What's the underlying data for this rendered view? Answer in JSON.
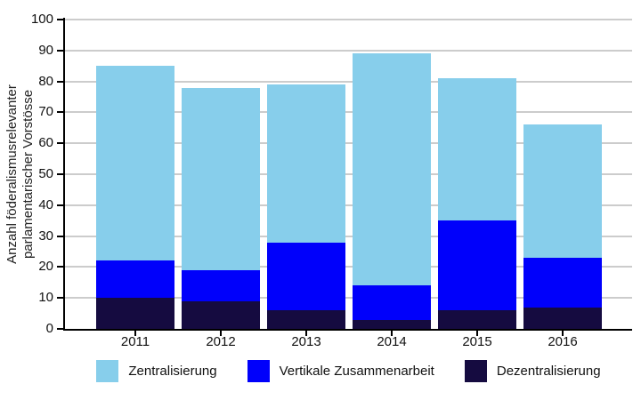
{
  "chart_data": {
    "type": "bar",
    "stacked": true,
    "title": "",
    "ylabel_line1": "Anzahl föderalismusrelevanter",
    "ylabel_line2": "parlamentarischer Vorstösse",
    "xlabel": "",
    "categories": [
      "2011",
      "2012",
      "2013",
      "2014",
      "2015",
      "2016"
    ],
    "series": [
      {
        "name": "Zentralisierung",
        "color": "#87CEEB",
        "values": [
          63,
          59,
          51,
          75,
          46,
          43
        ]
      },
      {
        "name": "Vertikale Zusammenarbeit",
        "color": "#0000FB",
        "values": [
          12,
          10,
          22,
          11,
          29,
          16
        ]
      },
      {
        "name": "Dezentralisierung",
        "color": "#150B40",
        "values": [
          10,
          9,
          6,
          3,
          6,
          7
        ]
      }
    ],
    "stack_order_bottom_to_top": [
      "Dezentralisierung",
      "Vertikale Zusammenarbeit",
      "Zentralisierung"
    ],
    "totals": [
      85,
      78,
      79,
      89,
      81,
      66
    ],
    "ylim": [
      0,
      100
    ],
    "yticks": [
      0,
      10,
      20,
      30,
      40,
      50,
      60,
      70,
      80,
      90,
      100
    ],
    "grid": true,
    "gridline_color": "#CCCCCC",
    "axis_color": "#000000",
    "legend_position": "bottom"
  }
}
